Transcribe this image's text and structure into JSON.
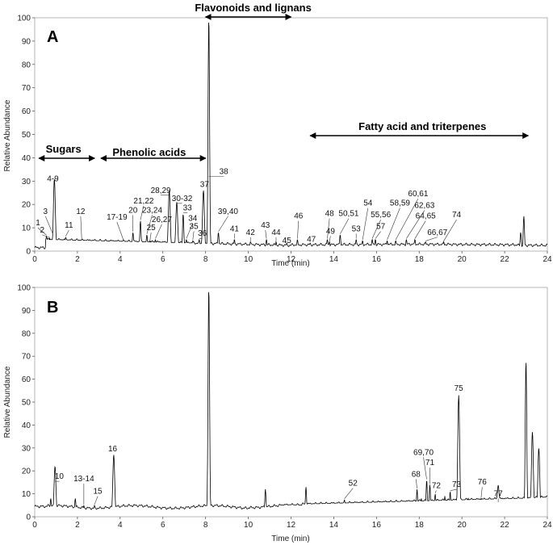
{
  "panels": [
    {
      "letter": "A"
    },
    {
      "letter": "B"
    }
  ],
  "chart_data": [
    {
      "type": "line",
      "xlabel": "Time (min)",
      "ylabel": "Relative Abundance",
      "xlim": [
        0,
        24
      ],
      "ylim": [
        0,
        100
      ],
      "x_ticks": [
        "0",
        "2",
        "4",
        "6",
        "8",
        "10",
        "12",
        "14",
        "16",
        "18",
        "20",
        "22",
        "24"
      ],
      "y_ticks": [
        "0",
        "10",
        "20",
        "30",
        "40",
        "50",
        "60",
        "70",
        "80",
        "90",
        "100"
      ],
      "grid": false,
      "regions": [
        {
          "label": "Sugars",
          "start": 0.2,
          "end": 2.8
        },
        {
          "label": "Phenolic acids",
          "start": 3.1,
          "end": 8.0
        },
        {
          "label": "Flavonoids and lignans",
          "start": 8.0,
          "end": 12.0
        },
        {
          "label": "Fatty acid and triterpenes",
          "start": 12.9,
          "end": 23.1
        }
      ],
      "peaks": [
        {
          "label": "1",
          "rt": 0.55,
          "y": 6.5,
          "lx": 0.15,
          "ly": 11
        },
        {
          "label": "2",
          "rt": 0.7,
          "y": 5.5,
          "lx": 0.35,
          "ly": 8
        },
        {
          "label": "3",
          "rt": 0.85,
          "y": 7,
          "lx": 0.5,
          "ly": 16
        },
        {
          "label": "4-9",
          "rt": 0.92,
          "y": 31,
          "lx": 0.85,
          "ly": 30
        },
        {
          "label": "11",
          "rt": 1.45,
          "y": 6,
          "lx": 1.6,
          "ly": 10
        },
        {
          "label": "12",
          "rt": 2.2,
          "y": 5,
          "lx": 2.15,
          "ly": 16
        },
        {
          "label": "17-19",
          "rt": 4.15,
          "y": 4.5,
          "lx": 3.85,
          "ly": 13.5
        },
        {
          "label": "20",
          "rt": 4.6,
          "y": 8,
          "lx": 4.6,
          "ly": 16.5
        },
        {
          "label": "21,22",
          "rt": 4.95,
          "y": 13,
          "lx": 5.1,
          "ly": 20.5
        },
        {
          "label": "23,24",
          "rt": 5.25,
          "y": 7,
          "lx": 5.5,
          "ly": 16.5
        },
        {
          "label": "25",
          "rt": 5.4,
          "y": 4.5,
          "lx": 5.45,
          "ly": 9
        },
        {
          "label": "26,27",
          "rt": 5.65,
          "y": 5,
          "lx": 5.95,
          "ly": 12.5
        },
        {
          "label": "28,29",
          "rt": 6.3,
          "y": 26,
          "lx": 5.9,
          "ly": 25
        },
        {
          "label": "30-32",
          "rt": 6.65,
          "y": 21,
          "lx": 6.9,
          "ly": 21.5
        },
        {
          "label": "33",
          "rt": 6.95,
          "y": 16,
          "lx": 7.15,
          "ly": 17.5
        },
        {
          "label": "34",
          "rt": 7.1,
          "y": 5,
          "lx": 7.4,
          "ly": 13
        },
        {
          "label": "35",
          "rt": 7.4,
          "y": 4.5,
          "lx": 7.45,
          "ly": 9.5
        },
        {
          "label": "36",
          "rt": 7.7,
          "y": 5,
          "lx": 7.85,
          "ly": 6.5
        },
        {
          "label": "37",
          "rt": 7.9,
          "y": 26,
          "lx": 7.95,
          "ly": 27.5
        },
        {
          "label": "38",
          "rt": 8.15,
          "y": 100,
          "lx": 8.85,
          "ly": 33
        },
        {
          "label": "39,40",
          "rt": 8.6,
          "y": 8,
          "lx": 9.05,
          "ly": 16
        },
        {
          "label": "41",
          "rt": 9.35,
          "y": 5,
          "lx": 9.35,
          "ly": 8.5
        },
        {
          "label": "42",
          "rt": 10.1,
          "y": 4,
          "lx": 10.1,
          "ly": 7
        },
        {
          "label": "43",
          "rt": 10.85,
          "y": 5,
          "lx": 10.8,
          "ly": 10
        },
        {
          "label": "44",
          "rt": 11.3,
          "y": 4,
          "lx": 11.3,
          "ly": 7
        },
        {
          "label": "45",
          "rt": 11.8,
          "y": 3.5,
          "lx": 11.8,
          "ly": 3.5
        },
        {
          "label": "46",
          "rt": 12.3,
          "y": 5,
          "lx": 12.35,
          "ly": 14
        },
        {
          "label": "47",
          "rt": 12.9,
          "y": 3.5,
          "lx": 12.95,
          "ly": 4
        },
        {
          "label": "48",
          "rt": 13.7,
          "y": 5,
          "lx": 13.8,
          "ly": 15
        },
        {
          "label": "49",
          "rt": 13.8,
          "y": 4,
          "lx": 13.85,
          "ly": 7.5
        },
        {
          "label": "50,51",
          "rt": 14.3,
          "y": 7,
          "lx": 14.7,
          "ly": 15
        },
        {
          "label": "53",
          "rt": 15.05,
          "y": 5,
          "lx": 15.05,
          "ly": 8.5
        },
        {
          "label": "54",
          "rt": 15.35,
          "y": 4.5,
          "lx": 15.6,
          "ly": 19.5
        },
        {
          "label": "55,56",
          "rt": 15.8,
          "y": 5,
          "lx": 16.2,
          "ly": 14.5
        },
        {
          "label": "57",
          "rt": 15.95,
          "y": 5,
          "lx": 16.2,
          "ly": 9.5
        },
        {
          "label": "58,59",
          "rt": 16.5,
          "y": 4.5,
          "lx": 17.1,
          "ly": 19.5
        },
        {
          "label": "60,61",
          "rt": 16.9,
          "y": 4.5,
          "lx": 17.95,
          "ly": 23.5
        },
        {
          "label": "62,63",
          "rt": 17.4,
          "y": 5,
          "lx": 18.25,
          "ly": 18.5
        },
        {
          "label": "64,65",
          "rt": 17.8,
          "y": 5,
          "lx": 18.3,
          "ly": 14
        },
        {
          "label": "66,67",
          "rt": 18.3,
          "y": 4,
          "lx": 18.85,
          "ly": 7
        },
        {
          "label": "74",
          "rt": 19.15,
          "y": 4,
          "lx": 19.75,
          "ly": 14.5
        }
      ]
    },
    {
      "type": "line",
      "xlabel": "Time (min)",
      "ylabel": "Relative Abundance",
      "xlim": [
        0,
        24
      ],
      "ylim": [
        0,
        100
      ],
      "x_ticks": [
        "0",
        "2",
        "4",
        "6",
        "8",
        "10",
        "12",
        "14",
        "16",
        "18",
        "20",
        "22",
        "24"
      ],
      "y_ticks": [
        "0",
        "10",
        "20",
        "30",
        "40",
        "50",
        "60",
        "70",
        "80",
        "90",
        "100"
      ],
      "grid": false,
      "peaks": [
        {
          "label": "10",
          "rt": 0.95,
          "y": 22,
          "lx": 1.15,
          "ly": 16.5
        },
        {
          "label": "13-14",
          "rt": 2.3,
          "y": 5,
          "lx": 2.3,
          "ly": 15.5
        },
        {
          "label": "15",
          "rt": 2.8,
          "y": 5,
          "lx": 2.95,
          "ly": 10
        },
        {
          "label": "16",
          "rt": 3.7,
          "y": 27,
          "lx": 3.65,
          "ly": 28.5
        },
        {
          "label": "52",
          "rt": 14.5,
          "y": 7.5,
          "lx": 14.9,
          "ly": 13.5
        },
        {
          "label": "68",
          "rt": 17.9,
          "y": 12,
          "lx": 17.85,
          "ly": 17.5
        },
        {
          "label": "69,70",
          "rt": 18.35,
          "y": 16,
          "lx": 18.2,
          "ly": 27
        },
        {
          "label": "71",
          "rt": 18.5,
          "y": 14,
          "lx": 18.5,
          "ly": 22.5
        },
        {
          "label": "72",
          "rt": 18.75,
          "y": 10,
          "lx": 18.8,
          "ly": 12.5
        },
        {
          "label": "73",
          "rt": 19.45,
          "y": 11,
          "lx": 19.75,
          "ly": 13
        },
        {
          "label": "75",
          "rt": 19.85,
          "y": 53,
          "lx": 19.85,
          "ly": 55
        },
        {
          "label": "76",
          "rt": 20.9,
          "y": 8,
          "lx": 20.95,
          "ly": 14
        },
        {
          "label": "77",
          "rt": 21.7,
          "y": 6,
          "lx": 21.7,
          "ly": 9
        }
      ]
    }
  ]
}
